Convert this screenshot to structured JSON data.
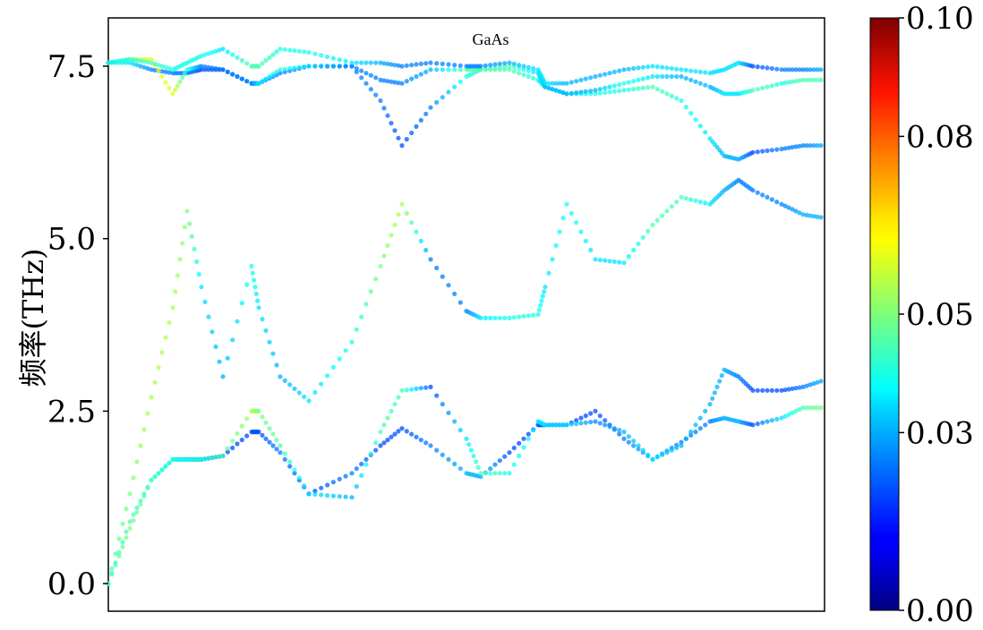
{
  "chart_data": {
    "type": "scatter",
    "title": "GaAs",
    "xlabel": "",
    "ylabel": "频率(THz)",
    "ylim": [
      -0.4,
      8.2
    ],
    "yticks": [
      0.0,
      2.5,
      5.0,
      7.5
    ],
    "ytick_labels": [
      "0.0",
      "2.5",
      "5.0",
      "7.5"
    ],
    "xticks": [],
    "grid": false,
    "colorbar": {
      "colormap": "jet",
      "range": [
        0.0,
        0.1
      ],
      "ticks": [
        0.0,
        0.03,
        0.05,
        0.08,
        0.1
      ],
      "tick_labels": [
        "0.00",
        "0.03",
        "0.05",
        "0.08",
        "0.10"
      ]
    },
    "x_range": [
      0,
      1
    ],
    "series": [
      {
        "x": [
          0,
          0.03,
          0.06,
          0.09,
          0.11,
          0.13,
          0.16,
          0.2,
          0.21,
          0.24,
          0.28,
          0.34,
          0.38,
          0.41,
          0.45,
          0.5,
          0.52,
          0.56,
          0.6,
          0.61,
          0.64,
          0.68,
          0.72,
          0.76,
          0.8,
          0.84,
          0.86,
          0.88,
          0.9,
          0.94,
          0.97,
          1.0
        ],
        "y": [
          0.0,
          0.9,
          1.5,
          1.8,
          1.8,
          1.8,
          1.85,
          2.2,
          2.2,
          1.9,
          1.3,
          1.6,
          2.0,
          2.25,
          2.0,
          1.6,
          1.55,
          1.9,
          2.3,
          2.3,
          2.3,
          2.5,
          2.1,
          1.8,
          2.05,
          2.35,
          2.4,
          2.35,
          2.3,
          2.4,
          2.55,
          2.55
        ],
        "c": [
          0.04,
          0.045,
          0.04,
          0.035,
          0.025,
          0.02,
          0.02,
          0.02,
          0.02,
          0.025,
          0.02,
          0.025,
          0.02,
          0.02,
          0.025,
          0.03,
          0.03,
          0.02,
          0.02,
          0.02,
          0.02,
          0.02,
          0.025,
          0.03,
          0.025,
          0.025,
          0.03,
          0.03,
          0.02,
          0.035,
          0.045,
          0.05
        ]
      },
      {
        "x": [
          0,
          0.03,
          0.06,
          0.09,
          0.11,
          0.13,
          0.16,
          0.2,
          0.21,
          0.24,
          0.28,
          0.34,
          0.38,
          0.41,
          0.45,
          0.5,
          0.52,
          0.56,
          0.6,
          0.61,
          0.64,
          0.68,
          0.72,
          0.76,
          0.8,
          0.84,
          0.86,
          0.88,
          0.9,
          0.94,
          0.97,
          1.0
        ],
        "y": [
          0.0,
          0.8,
          1.5,
          1.8,
          1.8,
          1.8,
          1.85,
          2.5,
          2.5,
          2.0,
          1.3,
          1.25,
          2.2,
          2.8,
          2.85,
          2.1,
          1.6,
          1.6,
          2.35,
          2.3,
          2.3,
          2.35,
          2.2,
          1.8,
          2.0,
          2.6,
          3.1,
          3.0,
          2.8,
          2.8,
          2.85,
          2.95
        ],
        "c": [
          0.045,
          0.05,
          0.045,
          0.04,
          0.04,
          0.04,
          0.045,
          0.055,
          0.05,
          0.045,
          0.035,
          0.03,
          0.045,
          0.045,
          0.02,
          0.035,
          0.045,
          0.04,
          0.035,
          0.035,
          0.035,
          0.025,
          0.03,
          0.035,
          0.03,
          0.03,
          0.03,
          0.025,
          0.02,
          0.02,
          0.025,
          0.03
        ]
      },
      {
        "x": [
          0,
          0.03,
          0.06,
          0.09,
          0.11,
          0.13,
          0.16,
          0.2,
          0.21,
          0.24,
          0.28,
          0.34,
          0.38,
          0.41,
          0.45,
          0.5,
          0.52,
          0.56,
          0.6,
          0.61,
          0.64,
          0.68,
          0.72,
          0.76,
          0.8,
          0.84,
          0.86,
          0.88,
          0.9,
          0.94,
          0.97,
          1.0
        ],
        "y": [
          0.0,
          1.3,
          2.7,
          4.0,
          5.4,
          4.3,
          3.0,
          4.6,
          4.0,
          3.0,
          2.65,
          3.5,
          4.6,
          5.5,
          4.7,
          3.95,
          3.85,
          3.85,
          3.9,
          4.3,
          5.5,
          4.7,
          4.65,
          5.2,
          5.6,
          5.5,
          5.7,
          5.85,
          5.7,
          5.5,
          5.35,
          5.3
        ],
        "c": [
          0.045,
          0.05,
          0.055,
          0.055,
          0.05,
          0.035,
          0.03,
          0.04,
          0.035,
          0.03,
          0.035,
          0.04,
          0.05,
          0.055,
          0.025,
          0.025,
          0.035,
          0.04,
          0.04,
          0.035,
          0.04,
          0.035,
          0.035,
          0.045,
          0.045,
          0.035,
          0.03,
          0.025,
          0.025,
          0.025,
          0.03,
          0.03
        ]
      },
      {
        "x": [
          0,
          0.03,
          0.06,
          0.09,
          0.11,
          0.13,
          0.16,
          0.2,
          0.21,
          0.24,
          0.28,
          0.34,
          0.38,
          0.41,
          0.45,
          0.5,
          0.52,
          0.56,
          0.6,
          0.61,
          0.64,
          0.68,
          0.72,
          0.76,
          0.8,
          0.84,
          0.86,
          0.88,
          0.9,
          0.94,
          0.97,
          1.0
        ],
        "y": [
          7.55,
          7.55,
          7.45,
          7.4,
          7.4,
          7.45,
          7.45,
          7.25,
          7.25,
          7.4,
          7.5,
          7.5,
          7.0,
          6.35,
          6.9,
          7.35,
          7.45,
          7.45,
          7.3,
          7.2,
          7.1,
          7.1,
          7.15,
          7.2,
          7.0,
          6.45,
          6.2,
          6.15,
          6.25,
          6.3,
          6.35,
          6.35
        ],
        "c": [
          0.04,
          0.035,
          0.025,
          0.025,
          0.025,
          0.02,
          0.02,
          0.025,
          0.025,
          0.025,
          0.025,
          0.025,
          0.025,
          0.02,
          0.025,
          0.04,
          0.045,
          0.045,
          0.04,
          0.04,
          0.035,
          0.04,
          0.04,
          0.045,
          0.04,
          0.035,
          0.03,
          0.03,
          0.02,
          0.025,
          0.025,
          0.03
        ]
      },
      {
        "x": [
          0,
          0.03,
          0.06,
          0.09,
          0.11,
          0.13,
          0.16,
          0.2,
          0.21,
          0.24,
          0.28,
          0.34,
          0.38,
          0.41,
          0.45,
          0.5,
          0.52,
          0.56,
          0.6,
          0.61,
          0.64,
          0.68,
          0.72,
          0.76,
          0.8,
          0.84,
          0.86,
          0.88,
          0.9,
          0.94,
          0.97,
          1.0
        ],
        "y": [
          7.55,
          7.6,
          7.6,
          7.1,
          7.45,
          7.5,
          7.45,
          7.25,
          7.25,
          7.45,
          7.5,
          7.5,
          7.3,
          7.25,
          7.45,
          7.45,
          7.45,
          7.5,
          7.4,
          7.2,
          7.1,
          7.15,
          7.25,
          7.35,
          7.35,
          7.2,
          7.1,
          7.1,
          7.15,
          7.25,
          7.3,
          7.3
        ],
        "c": [
          0.05,
          0.055,
          0.06,
          0.06,
          0.04,
          0.025,
          0.025,
          0.025,
          0.035,
          0.04,
          0.035,
          0.025,
          0.025,
          0.025,
          0.03,
          0.045,
          0.045,
          0.045,
          0.035,
          0.03,
          0.03,
          0.03,
          0.04,
          0.035,
          0.03,
          0.03,
          0.035,
          0.035,
          0.045,
          0.04,
          0.045,
          0.045
        ]
      },
      {
        "x": [
          0,
          0.03,
          0.06,
          0.09,
          0.11,
          0.13,
          0.16,
          0.2,
          0.21,
          0.24,
          0.28,
          0.34,
          0.38,
          0.41,
          0.45,
          0.5,
          0.52,
          0.56,
          0.6,
          0.61,
          0.64,
          0.68,
          0.72,
          0.76,
          0.8,
          0.84,
          0.86,
          0.88,
          0.9,
          0.94,
          0.97,
          1.0
        ],
        "y": [
          7.55,
          7.6,
          7.55,
          7.45,
          7.55,
          7.65,
          7.75,
          7.5,
          7.5,
          7.75,
          7.7,
          7.55,
          7.55,
          7.5,
          7.55,
          7.5,
          7.5,
          7.55,
          7.45,
          7.25,
          7.25,
          7.35,
          7.45,
          7.5,
          7.45,
          7.4,
          7.45,
          7.55,
          7.5,
          7.45,
          7.45,
          7.45
        ],
        "c": [
          0.035,
          0.04,
          0.045,
          0.04,
          0.04,
          0.04,
          0.035,
          0.045,
          0.045,
          0.04,
          0.04,
          0.035,
          0.03,
          0.025,
          0.025,
          0.025,
          0.025,
          0.03,
          0.035,
          0.035,
          0.03,
          0.03,
          0.03,
          0.035,
          0.035,
          0.035,
          0.035,
          0.035,
          0.02,
          0.025,
          0.025,
          0.03
        ]
      }
    ]
  }
}
